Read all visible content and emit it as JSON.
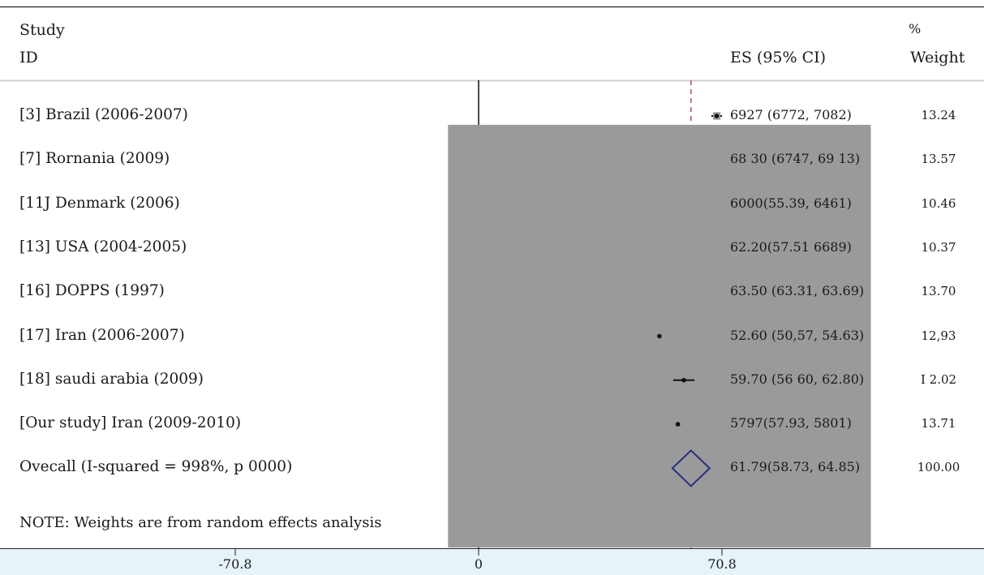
{
  "header": {
    "study_line1": "Study",
    "study_line2": "ID",
    "es_label": "ES (95% CI)",
    "weight_line1": "%",
    "weight_line2": "Weight"
  },
  "colors": {
    "axis_band": "#e6f3f8",
    "reference_line": "#a0393b",
    "diamond": "#2b2f7e",
    "marker_box": "#9a9a9a",
    "marker_dot": "#111111"
  },
  "chart_data": {
    "type": "forest",
    "xlim": [
      -130,
      130
    ],
    "xticks": [
      -70.8,
      0,
      70.8
    ],
    "xtick_labels": [
      "-70.8",
      "0",
      "70.8"
    ],
    "null_line": 0,
    "reference_line": 61.79,
    "rows": [
      {
        "label": "[3] Brazil (2006-2007)",
        "es": 69.27,
        "lo": 67.72,
        "hi": 70.82,
        "es_text": "6927  (6772,  7082)",
        "weight": "13.24"
      },
      {
        "label": "[7] Rornania (2009)",
        "es": 68.3,
        "lo": 67.47,
        "hi": 69.13,
        "es_text": "68 30 (6747, 69 13)",
        "weight": "13.57"
      },
      {
        "label": "[11J Denmark (2006)",
        "es": 60.0,
        "lo": 55.39,
        "hi": 64.61,
        "es_text": "6000(55.39,   6461)",
        "weight": "10.46"
      },
      {
        "label": "[13] USA (2004-2005)",
        "es": 62.2,
        "lo": 57.51,
        "hi": 66.89,
        "es_text": "62.20(57.51   6689)",
        "weight": "10.37"
      },
      {
        "label": "[16] DOPPS (1997)",
        "es": 63.5,
        "lo": 63.31,
        "hi": 63.69,
        "es_text": "63.50 (63.31, 63.69)",
        "weight": "13.70"
      },
      {
        "label": "[17] Iran (2006-2007)",
        "es": 52.6,
        "lo": 50.57,
        "hi": 54.63,
        "es_text": "52.60 (50,57, 54.63)",
        "weight": "12,93"
      },
      {
        "label": "[18] saudi arabia (2009)",
        "es": 59.7,
        "lo": 56.6,
        "hi": 62.8,
        "es_text": "59.70 (56 60, 62.80)",
        "weight": "I 2.02"
      },
      {
        "label": "[Our study] Iran (2009-2010)",
        "es": 57.97,
        "lo": 57.93,
        "hi": 58.01,
        "es_text": "5797(57.93,      5801)",
        "weight": "13.71"
      }
    ],
    "overall": {
      "label": "Ovecall (I-squared = 998%, p 0000)",
      "es": 61.79,
      "lo": 58.73,
      "hi": 64.85,
      "es_text": "61.79(58.73,   64.85)",
      "weight": "100.00"
    },
    "note": "NOTE: Weights are from random effects analysis"
  }
}
